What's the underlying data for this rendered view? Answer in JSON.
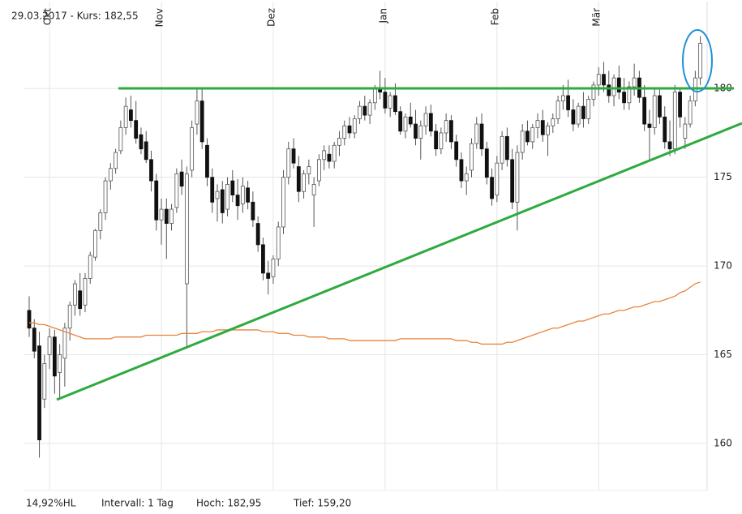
{
  "chart_data": {
    "type": "candlestick",
    "header": "29.03.2017  - Kurs: 182,55",
    "footer": [
      "14,92%HL",
      "Intervall: 1 Tag",
      "Hoch:  182,95",
      "Tief:  159,20"
    ],
    "ylim": [
      157.35,
      184.9
    ],
    "yticks": [
      160,
      165,
      170,
      175,
      180
    ],
    "grid": true,
    "up_color": "#ffffff",
    "down_color": "#111111",
    "wick_color": "#555555",
    "categories": [
      null,
      null,
      null,
      null,
      "Okt",
      null,
      null,
      null,
      null,
      null,
      null,
      null,
      null,
      null,
      null,
      null,
      null,
      null,
      null,
      null,
      null,
      null,
      null,
      null,
      null,
      null,
      "Nov",
      null,
      null,
      null,
      null,
      null,
      null,
      null,
      null,
      null,
      null,
      null,
      null,
      null,
      null,
      null,
      null,
      null,
      null,
      null,
      null,
      null,
      "Dez",
      null,
      null,
      null,
      null,
      null,
      null,
      null,
      null,
      null,
      null,
      null,
      null,
      null,
      null,
      null,
      null,
      null,
      null,
      null,
      null,
      null,
      "Jan",
      null,
      null,
      null,
      null,
      null,
      null,
      null,
      null,
      null,
      null,
      null,
      null,
      null,
      null,
      null,
      null,
      null,
      null,
      null,
      null,
      null,
      "Feb",
      null,
      null,
      null,
      null,
      null,
      null,
      null,
      null,
      null,
      null,
      null,
      null,
      null,
      null,
      null,
      null,
      null,
      null,
      null,
      "Mär",
      null,
      null,
      null,
      null,
      null,
      null,
      null,
      null,
      null,
      null,
      null,
      null,
      null,
      null,
      null,
      null,
      null,
      null,
      null,
      null
    ],
    "ohlc": [
      [
        167.5,
        168.3,
        166.0,
        166.5
      ],
      [
        166.5,
        167.0,
        164.8,
        165.2
      ],
      [
        165.5,
        166.3,
        159.2,
        160.2
      ],
      [
        162.5,
        165.0,
        162.0,
        164.5
      ],
      [
        165.0,
        166.5,
        164.2,
        166.0
      ],
      [
        166.0,
        166.4,
        162.8,
        163.8
      ],
      [
        164.0,
        165.6,
        162.5,
        165.0
      ],
      [
        164.8,
        166.8,
        163.2,
        166.5
      ],
      [
        166.5,
        168.0,
        165.8,
        167.8
      ],
      [
        167.8,
        169.2,
        167.2,
        169.0
      ],
      [
        168.6,
        169.6,
        167.2,
        167.6
      ],
      [
        167.8,
        169.6,
        167.4,
        169.3
      ],
      [
        169.3,
        170.8,
        169.0,
        170.6
      ],
      [
        170.5,
        172.1,
        170.3,
        172.0
      ],
      [
        172.0,
        173.2,
        171.5,
        173.0
      ],
      [
        173.0,
        175.0,
        172.6,
        174.8
      ],
      [
        174.8,
        175.8,
        174.3,
        175.5
      ],
      [
        175.5,
        176.6,
        175.2,
        176.4
      ],
      [
        176.5,
        178.2,
        176.3,
        177.8
      ],
      [
        177.8,
        179.5,
        177.4,
        179.0
      ],
      [
        178.8,
        179.6,
        177.8,
        178.2
      ],
      [
        178.2,
        179.3,
        176.9,
        177.2
      ],
      [
        177.4,
        177.8,
        176.3,
        176.6
      ],
      [
        177.0,
        177.6,
        175.8,
        176.0
      ],
      [
        176.0,
        176.5,
        174.2,
        174.8
      ],
      [
        174.8,
        175.2,
        172.0,
        172.6
      ],
      [
        172.6,
        173.8,
        171.2,
        173.2
      ],
      [
        173.2,
        173.8,
        170.4,
        172.4
      ],
      [
        172.4,
        173.5,
        172.0,
        173.2
      ],
      [
        173.3,
        175.5,
        173.0,
        175.2
      ],
      [
        175.3,
        176.0,
        174.0,
        174.5
      ],
      [
        169.0,
        175.6,
        165.5,
        175.2
      ],
      [
        175.4,
        178.2,
        175.0,
        177.8
      ],
      [
        178.0,
        180.0,
        177.4,
        179.3
      ],
      [
        179.3,
        180.0,
        176.6,
        177.0
      ],
      [
        176.8,
        177.2,
        174.5,
        175.0
      ],
      [
        175.0,
        175.5,
        173.0,
        173.6
      ],
      [
        173.8,
        174.6,
        172.5,
        174.2
      ],
      [
        174.3,
        174.8,
        172.4,
        173.0
      ],
      [
        173.2,
        175.0,
        172.8,
        174.6
      ],
      [
        174.8,
        175.4,
        173.6,
        174.0
      ],
      [
        174.0,
        174.9,
        172.6,
        173.4
      ],
      [
        173.5,
        175.0,
        173.0,
        174.5
      ],
      [
        174.4,
        174.8,
        173.2,
        173.6
      ],
      [
        173.6,
        174.2,
        172.2,
        172.6
      ],
      [
        172.4,
        172.8,
        170.8,
        171.2
      ],
      [
        171.2,
        171.6,
        169.2,
        169.6
      ],
      [
        169.6,
        170.3,
        168.4,
        169.3
      ],
      [
        169.4,
        170.6,
        169.0,
        170.4
      ],
      [
        170.4,
        172.5,
        170.0,
        172.2
      ],
      [
        172.2,
        175.4,
        171.8,
        175.0
      ],
      [
        175.0,
        177.0,
        174.6,
        176.6
      ],
      [
        176.6,
        177.2,
        175.5,
        175.8
      ],
      [
        175.6,
        176.2,
        173.6,
        174.2
      ],
      [
        174.2,
        175.4,
        173.8,
        175.2
      ],
      [
        175.2,
        176.0,
        174.6,
        175.6
      ],
      [
        174.0,
        175.0,
        172.2,
        174.6
      ],
      [
        174.8,
        176.3,
        174.5,
        176.0
      ],
      [
        176.0,
        176.8,
        175.4,
        176.5
      ],
      [
        176.3,
        176.8,
        175.5,
        175.9
      ],
      [
        175.9,
        177.0,
        175.5,
        176.8
      ],
      [
        176.8,
        177.6,
        176.2,
        177.2
      ],
      [
        177.2,
        178.2,
        176.8,
        177.9
      ],
      [
        177.9,
        178.4,
        177.2,
        177.5
      ],
      [
        177.5,
        178.5,
        177.2,
        178.3
      ],
      [
        178.3,
        179.3,
        178.0,
        179.0
      ],
      [
        179.0,
        179.6,
        178.2,
        178.5
      ],
      [
        178.5,
        179.4,
        178.0,
        179.2
      ],
      [
        179.2,
        180.2,
        178.8,
        180.0
      ],
      [
        180.0,
        181.0,
        179.4,
        179.8
      ],
      [
        179.8,
        180.6,
        178.6,
        178.9
      ],
      [
        178.9,
        179.8,
        178.4,
        179.6
      ],
      [
        179.6,
        180.3,
        178.5,
        178.7
      ],
      [
        178.7,
        179.0,
        177.4,
        177.6
      ],
      [
        177.6,
        178.6,
        177.2,
        178.4
      ],
      [
        178.4,
        179.2,
        177.8,
        178.0
      ],
      [
        178.0,
        178.8,
        176.8,
        177.2
      ],
      [
        177.2,
        178.2,
        176.0,
        177.9
      ],
      [
        177.9,
        179.0,
        177.4,
        178.6
      ],
      [
        178.6,
        179.1,
        177.3,
        177.6
      ],
      [
        177.6,
        178.0,
        176.2,
        176.6
      ],
      [
        176.6,
        177.8,
        176.3,
        177.5
      ],
      [
        177.5,
        178.6,
        177.0,
        178.2
      ],
      [
        178.2,
        178.5,
        176.6,
        177.0
      ],
      [
        177.0,
        177.4,
        175.6,
        176.0
      ],
      [
        176.0,
        176.4,
        174.4,
        174.8
      ],
      [
        174.8,
        175.6,
        174.0,
        175.2
      ],
      [
        175.4,
        177.2,
        175.0,
        176.9
      ],
      [
        176.9,
        178.4,
        176.6,
        178.0
      ],
      [
        178.0,
        178.6,
        176.2,
        176.6
      ],
      [
        176.6,
        177.0,
        174.6,
        175.0
      ],
      [
        175.0,
        175.5,
        173.4,
        173.8
      ],
      [
        174.0,
        176.2,
        173.6,
        175.8
      ],
      [
        175.8,
        177.6,
        175.4,
        177.3
      ],
      [
        177.3,
        177.8,
        175.6,
        176.0
      ],
      [
        176.0,
        176.6,
        173.2,
        173.6
      ],
      [
        173.6,
        176.8,
        172.0,
        176.4
      ],
      [
        176.4,
        178.0,
        176.0,
        177.6
      ],
      [
        177.6,
        178.2,
        176.8,
        177.0
      ],
      [
        177.0,
        178.0,
        176.6,
        177.8
      ],
      [
        177.8,
        178.6,
        177.2,
        178.2
      ],
      [
        178.2,
        178.8,
        177.0,
        177.4
      ],
      [
        177.4,
        178.1,
        176.2,
        177.9
      ],
      [
        177.9,
        178.6,
        177.5,
        178.3
      ],
      [
        178.3,
        179.6,
        178.0,
        179.3
      ],
      [
        179.3,
        180.2,
        178.8,
        179.6
      ],
      [
        179.6,
        180.5,
        178.4,
        178.8
      ],
      [
        178.8,
        179.4,
        177.6,
        178.0
      ],
      [
        178.0,
        179.2,
        177.8,
        179.0
      ],
      [
        179.0,
        179.8,
        177.8,
        178.3
      ],
      [
        178.3,
        179.6,
        178.0,
        179.4
      ],
      [
        179.4,
        180.4,
        179.0,
        180.2
      ],
      [
        180.2,
        181.2,
        179.6,
        180.8
      ],
      [
        180.8,
        181.5,
        179.8,
        180.2
      ],
      [
        180.2,
        181.0,
        179.2,
        179.6
      ],
      [
        179.6,
        180.8,
        179.0,
        180.6
      ],
      [
        180.6,
        181.3,
        179.4,
        179.8
      ],
      [
        179.8,
        180.6,
        178.8,
        179.2
      ],
      [
        179.2,
        180.4,
        178.8,
        180.1
      ],
      [
        180.1,
        181.4,
        179.6,
        180.6
      ],
      [
        180.6,
        181.0,
        179.2,
        179.5
      ],
      [
        179.5,
        180.2,
        177.6,
        178.0
      ],
      [
        178.0,
        178.8,
        176.0,
        177.8
      ],
      [
        177.8,
        180.0,
        177.4,
        179.6
      ],
      [
        179.6,
        180.0,
        178.0,
        178.4
      ],
      [
        178.4,
        179.0,
        176.6,
        177.0
      ],
      [
        177.0,
        178.2,
        176.2,
        176.6
      ],
      [
        176.6,
        180.2,
        176.3,
        179.8
      ],
      [
        179.8,
        180.0,
        177.8,
        178.4
      ],
      [
        177.2,
        178.4,
        176.6,
        178.0
      ],
      [
        178.0,
        179.6,
        177.8,
        179.3
      ],
      [
        179.3,
        181.0,
        179.0,
        180.6
      ],
      [
        180.6,
        182.95,
        180.2,
        182.55
      ]
    ],
    "moving_average": {
      "color": "#e8843c",
      "values": [
        166.8,
        166.8,
        166.7,
        166.7,
        166.6,
        166.5,
        166.4,
        166.3,
        166.2,
        166.1,
        166.0,
        165.9,
        165.9,
        165.9,
        165.9,
        165.9,
        165.9,
        166.0,
        166.0,
        166.0,
        166.0,
        166.0,
        166.0,
        166.1,
        166.1,
        166.1,
        166.1,
        166.1,
        166.1,
        166.1,
        166.2,
        166.2,
        166.2,
        166.2,
        166.3,
        166.3,
        166.3,
        166.4,
        166.4,
        166.4,
        166.4,
        166.4,
        166.4,
        166.4,
        166.4,
        166.4,
        166.3,
        166.3,
        166.3,
        166.2,
        166.2,
        166.2,
        166.1,
        166.1,
        166.1,
        166.0,
        166.0,
        166.0,
        166.0,
        165.9,
        165.9,
        165.9,
        165.9,
        165.8,
        165.8,
        165.8,
        165.8,
        165.8,
        165.8,
        165.8,
        165.8,
        165.8,
        165.8,
        165.9,
        165.9,
        165.9,
        165.9,
        165.9,
        165.9,
        165.9,
        165.9,
        165.9,
        165.9,
        165.9,
        165.8,
        165.8,
        165.8,
        165.7,
        165.7,
        165.6,
        165.6,
        165.6,
        165.6,
        165.6,
        165.7,
        165.7,
        165.8,
        165.9,
        166.0,
        166.1,
        166.2,
        166.3,
        166.4,
        166.5,
        166.5,
        166.6,
        166.7,
        166.8,
        166.9,
        166.9,
        167.0,
        167.1,
        167.2,
        167.3,
        167.3,
        167.4,
        167.5,
        167.5,
        167.6,
        167.7,
        167.7,
        167.8,
        167.9,
        168.0,
        168.0,
        168.1,
        168.2,
        168.3,
        168.5,
        168.6,
        168.8,
        169.0,
        169.1
      ]
    }
  }
}
